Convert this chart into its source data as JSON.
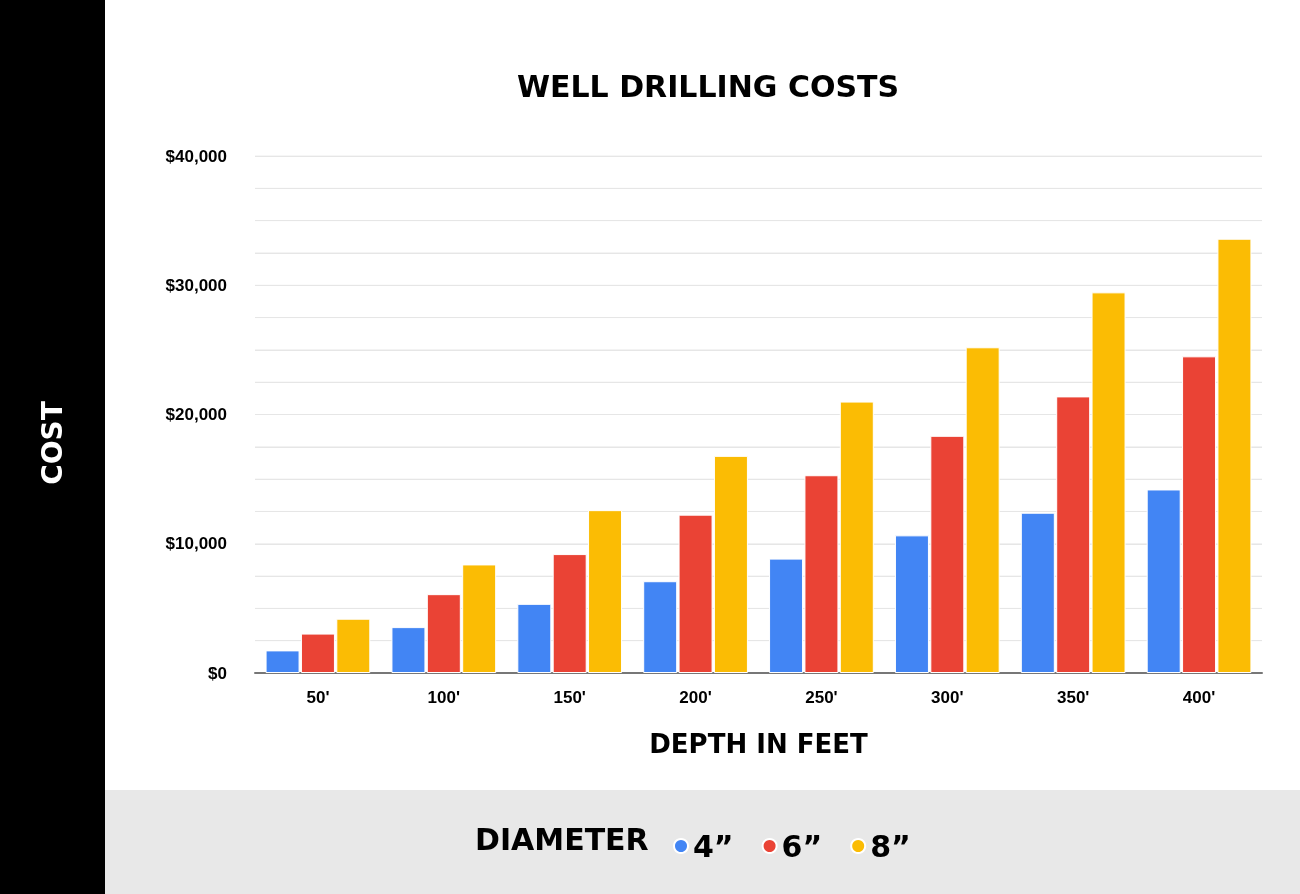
{
  "chart_data": {
    "type": "bar",
    "title": "WELL DRILLING COSTS",
    "xlabel": "DEPTH IN FEET",
    "ylabel": "COST",
    "legend_title": "DIAMETER",
    "categories": [
      "50'",
      "100'",
      "150'",
      "200'",
      "250'",
      "300'",
      "350'",
      "400'"
    ],
    "series": [
      {
        "name": "4”",
        "color": "#4285f4",
        "values": [
          1750,
          3550,
          5350,
          7100,
          8850,
          10650,
          12400,
          14200
        ]
      },
      {
        "name": "6”",
        "color": "#ea4335",
        "values": [
          3050,
          6100,
          9200,
          12250,
          15300,
          18350,
          21400,
          24500
        ]
      },
      {
        "name": "8”",
        "color": "#fbbc04",
        "values": [
          4200,
          8400,
          12600,
          16800,
          21000,
          25200,
          29450,
          33600
        ]
      }
    ],
    "ylim": [
      0,
      40000
    ],
    "yticks": [
      {
        "value": 0,
        "label": "$0"
      },
      {
        "value": 2500,
        "label": null
      },
      {
        "value": 5000,
        "label": null
      },
      {
        "value": 7500,
        "label": null
      },
      {
        "value": 10000,
        "label": "$10,000"
      },
      {
        "value": 12500,
        "label": null
      },
      {
        "value": 15000,
        "label": null
      },
      {
        "value": 17500,
        "label": null
      },
      {
        "value": 20000,
        "label": "$20,000"
      },
      {
        "value": 22500,
        "label": null
      },
      {
        "value": 25000,
        "label": null
      },
      {
        "value": 27500,
        "label": null
      },
      {
        "value": 30000,
        "label": "$30,000"
      },
      {
        "value": 32500,
        "label": null
      },
      {
        "value": 35000,
        "label": null
      },
      {
        "value": 37500,
        "label": null
      },
      {
        "value": 40000,
        "label": "$40,000"
      }
    ],
    "grid": "y",
    "legend": "bottom"
  }
}
